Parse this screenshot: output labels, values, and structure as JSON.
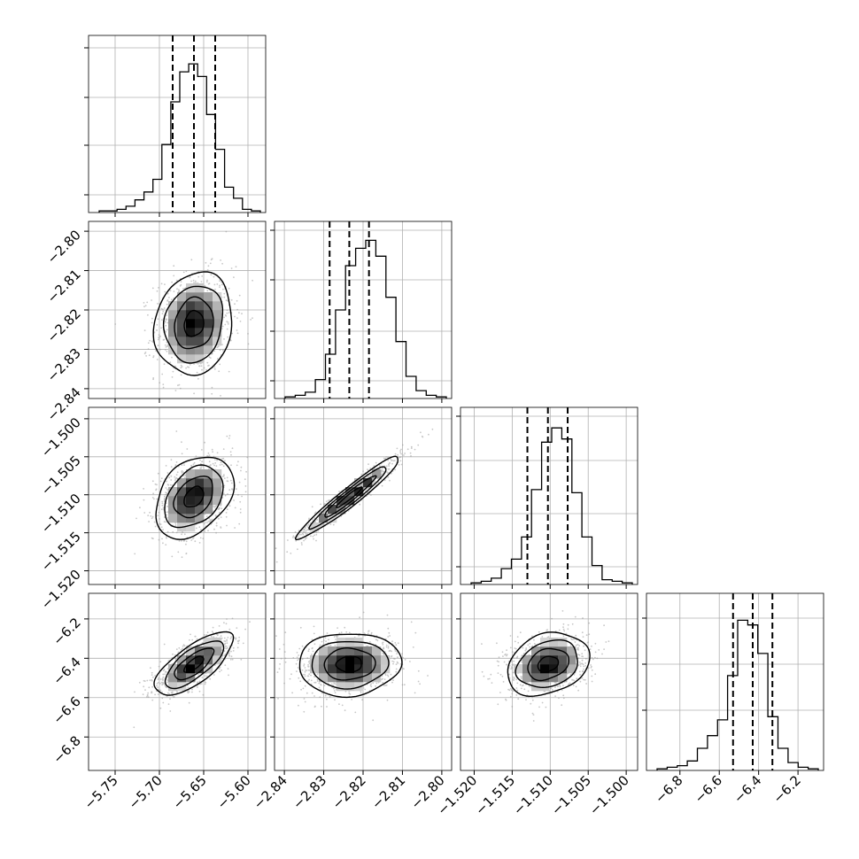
{
  "chart_data": {
    "type": "corner",
    "parameters": 4,
    "axis_label_text": "",
    "ranges": [
      [
        -5.78,
        -5.58
      ],
      [
        -2.8425,
        -2.7975
      ],
      [
        -1.5218,
        -1.4985
      ],
      [
        -6.97,
        -6.07
      ]
    ],
    "tick_values": [
      [
        -5.75,
        -5.7,
        -5.65,
        -5.6
      ],
      [
        -2.84,
        -2.83,
        -2.82,
        -2.81,
        -2.8
      ],
      [
        -1.52,
        -1.515,
        -1.51,
        -1.505,
        -1.5
      ],
      [
        -6.8,
        -6.6,
        -6.4,
        -6.2
      ]
    ],
    "tick_labels": [
      [
        "−5.75",
        "−5.70",
        "−5.65",
        "−5.60"
      ],
      [
        "−2.84",
        "−2.83",
        "−2.82",
        "−2.81",
        "−2.80"
      ],
      [
        "−1.520",
        "−1.515",
        "−1.510",
        "−1.505",
        "−1.500"
      ],
      [
        "−6.8",
        "−6.6",
        "−6.4",
        "−6.2"
      ]
    ],
    "quantiles": [
      [
        -5.685,
        -5.661,
        -5.637
      ],
      [
        -2.8285,
        -2.8235,
        -2.8185
      ],
      [
        -1.513,
        -1.5103,
        -1.5077
      ],
      [
        -6.53,
        -6.43,
        -6.33
      ]
    ],
    "histogram_counts": [
      [
        1,
        1,
        2,
        4,
        8,
        13,
        21,
        43,
        70,
        89,
        94,
        86,
        62,
        40,
        16,
        9,
        2,
        1
      ],
      [
        1,
        2,
        4,
        12,
        28,
        56,
        84,
        95,
        100,
        90,
        64,
        36,
        14,
        5,
        2,
        1
      ],
      [
        1,
        2,
        4,
        10,
        16,
        30,
        60,
        90,
        99,
        92,
        58,
        30,
        12,
        3,
        2,
        1
      ],
      [
        1,
        2,
        3,
        6,
        14,
        22,
        32,
        60,
        95,
        92,
        74,
        34,
        14,
        5,
        2,
        1
      ]
    ],
    "histogram_ymax": 112,
    "marginal_tick_fractions": [
      [
        0.1,
        0.38,
        0.65,
        0.93
      ],
      [
        0.1,
        0.38,
        0.67,
        0.95
      ],
      [
        0.1,
        0.4,
        0.7,
        0.95
      ],
      [
        0.34,
        0.6,
        0.86
      ]
    ],
    "pairs": [
      {
        "x": 0,
        "y": 1,
        "mean": [
          -5.661,
          -2.8235
        ],
        "sd": [
          0.022,
          0.0065
        ],
        "rho": 0.12
      },
      {
        "x": 0,
        "y": 2,
        "mean": [
          -5.661,
          -1.5103
        ],
        "sd": [
          0.022,
          0.0027
        ],
        "rho": 0.35
      },
      {
        "x": 1,
        "y": 2,
        "mean": [
          -2.8235,
          -1.5103
        ],
        "sd": [
          0.0065,
          0.0027
        ],
        "rho": 0.96
      },
      {
        "x": 0,
        "y": 3,
        "mean": [
          -5.661,
          -6.43
        ],
        "sd": [
          0.022,
          0.08
        ],
        "rho": 0.72
      },
      {
        "x": 1,
        "y": 3,
        "mean": [
          -2.8235,
          -6.43
        ],
        "sd": [
          0.0065,
          0.08
        ],
        "rho": 0.05
      },
      {
        "x": 2,
        "y": 3,
        "mean": [
          -1.5103,
          -6.43
        ],
        "sd": [
          0.0027,
          0.08
        ],
        "rho": 0.25
      }
    ],
    "contour_sigmas": [
      0.5,
      1.0,
      1.5,
      2.0
    ],
    "grid": true,
    "colors": {
      "line": "#000000",
      "grid": "#b0b0b0",
      "points": "#9a9a9a"
    }
  }
}
